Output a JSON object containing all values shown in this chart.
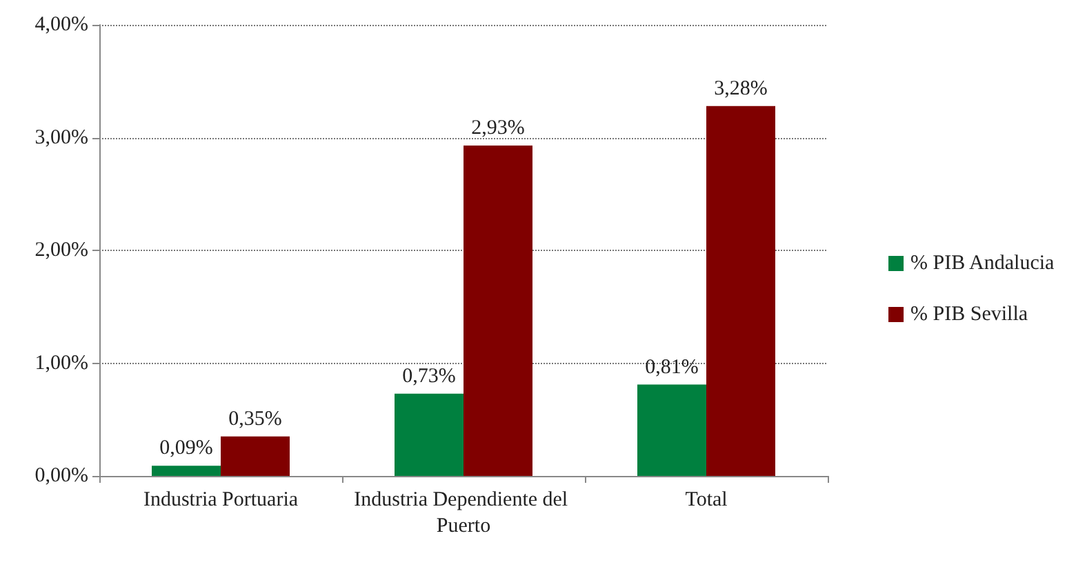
{
  "chart_data": {
    "type": "bar",
    "categories": [
      "Industria Portuaria",
      "Industria Dependiente del Puerto",
      "Total"
    ],
    "series": [
      {
        "name": "% PIB Andalucia",
        "color": "#00803f",
        "values": [
          0.09,
          0.73,
          0.81
        ],
        "value_labels": [
          "0,09%",
          "0,73%",
          "0,81%"
        ]
      },
      {
        "name": "% PIB Sevilla",
        "color": "#800000",
        "values": [
          0.35,
          2.93,
          3.28
        ],
        "value_labels": [
          "0,35%",
          "2,93%",
          "3,28%"
        ]
      }
    ],
    "ylim": [
      0,
      4
    ],
    "yticks": [
      {
        "value": 0,
        "label": "0,00%"
      },
      {
        "value": 1,
        "label": "1,00%"
      },
      {
        "value": 2,
        "label": "2,00%"
      },
      {
        "value": 3,
        "label": "3,00%"
      },
      {
        "value": 4,
        "label": "4,00%"
      }
    ],
    "grid": "y",
    "legend": "right"
  }
}
